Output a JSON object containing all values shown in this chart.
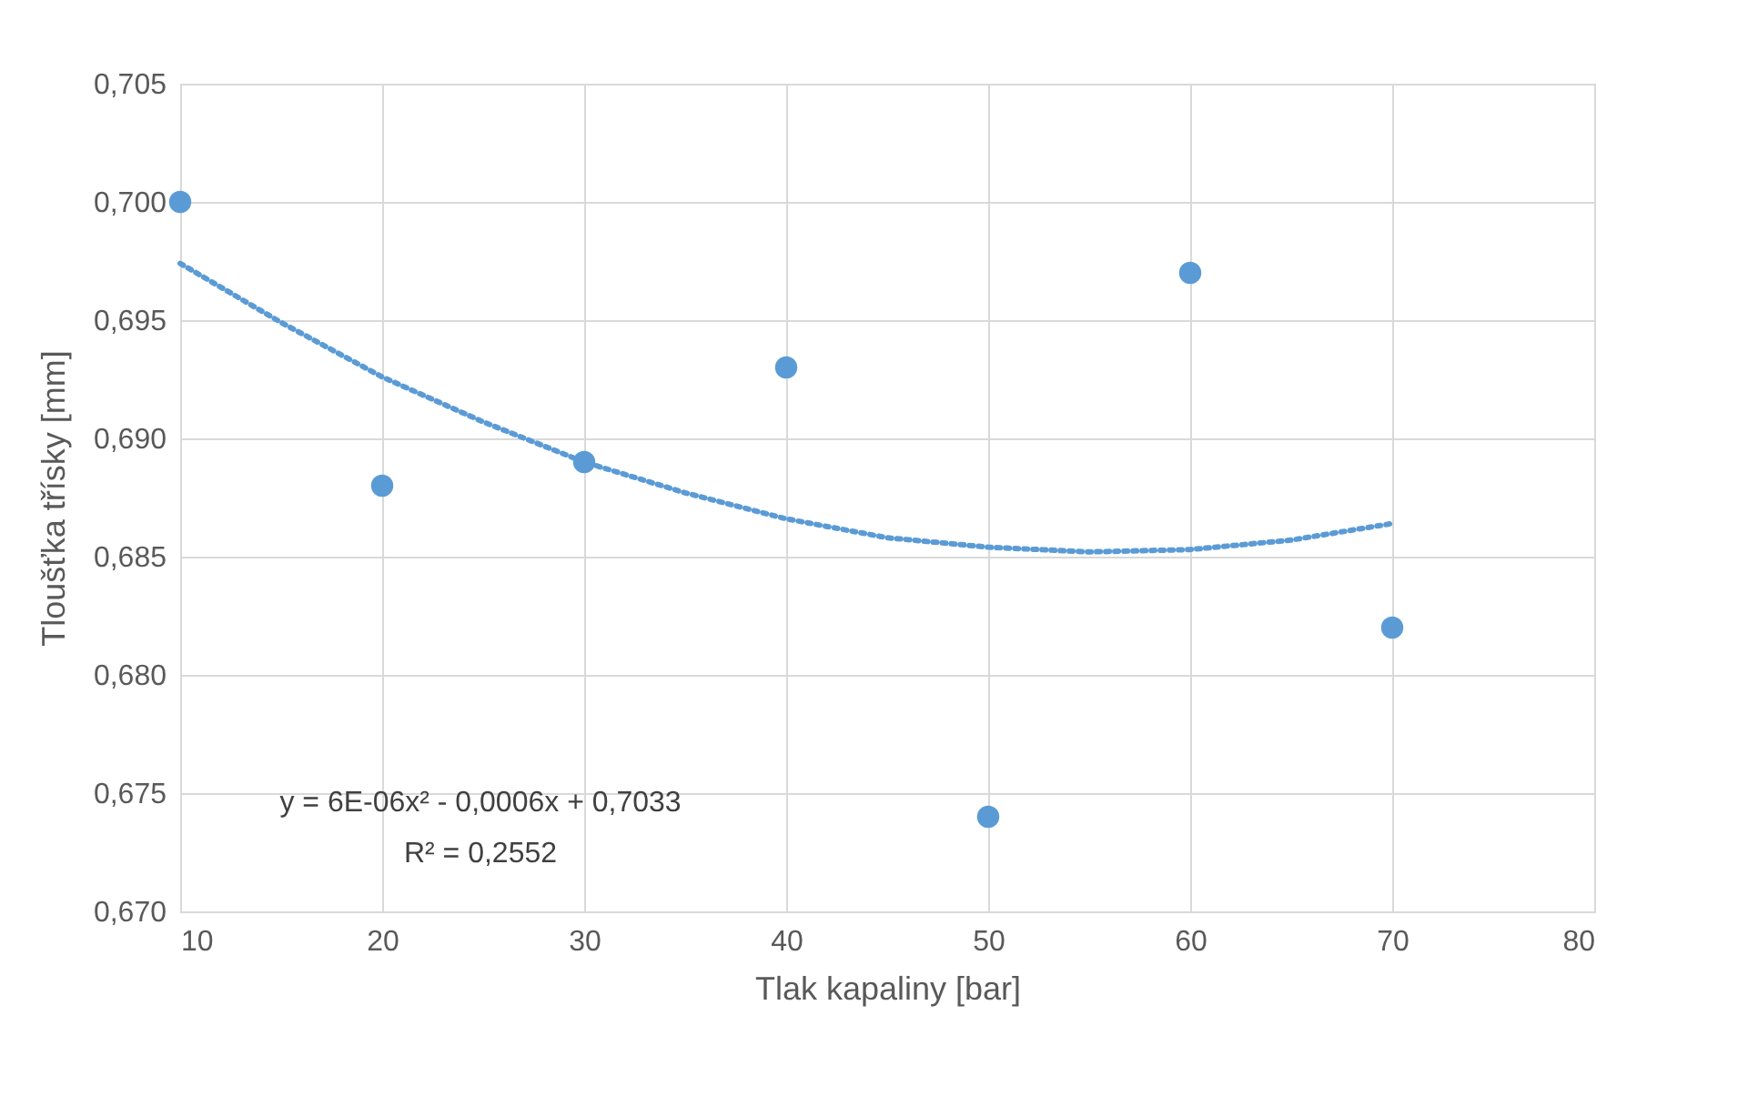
{
  "chart_data": {
    "type": "scatter",
    "xlabel": "Tlak kapaliny [bar]",
    "ylabel": "Tloušťka třísky [mm]",
    "x": [
      10,
      20,
      30,
      40,
      50,
      60,
      70
    ],
    "series": [
      {
        "type": "scatter",
        "color": "#5b9bd5",
        "marker": "circle",
        "values": [
          0.7,
          0.688,
          0.689,
          0.693,
          0.674,
          0.697,
          0.682
        ]
      },
      {
        "type": "line",
        "color": "#5b9bd5",
        "line_style": "dotted",
        "marker": "none",
        "x": [
          10,
          15,
          20,
          25,
          30,
          35,
          40,
          45,
          50,
          55,
          60,
          65,
          70
        ],
        "values": [
          0.6974,
          0.6949,
          0.6926,
          0.6907,
          0.689,
          0.6877,
          0.6866,
          0.6858,
          0.6854,
          0.6852,
          0.6853,
          0.6857,
          0.6864
        ]
      }
    ],
    "xlim": [
      10,
      80
    ],
    "xticks": [
      10,
      20,
      30,
      40,
      50,
      60,
      70,
      80
    ],
    "ylim": [
      0.67,
      0.705
    ],
    "yticks": [
      {
        "value": 0.67,
        "label": "0,670"
      },
      {
        "value": 0.675,
        "label": "0,675"
      },
      {
        "value": 0.68,
        "label": "0,680"
      },
      {
        "value": 0.685,
        "label": "0,685"
      },
      {
        "value": 0.69,
        "label": "0,690"
      },
      {
        "value": 0.695,
        "label": "0,695"
      },
      {
        "value": 0.7,
        "label": "0,700"
      },
      {
        "value": 0.705,
        "label": "0,705"
      }
    ],
    "grid": true,
    "annotations": [
      "y = 6E-06x² - 0,0006x + 0,7033",
      "R² = 0,2552"
    ]
  }
}
